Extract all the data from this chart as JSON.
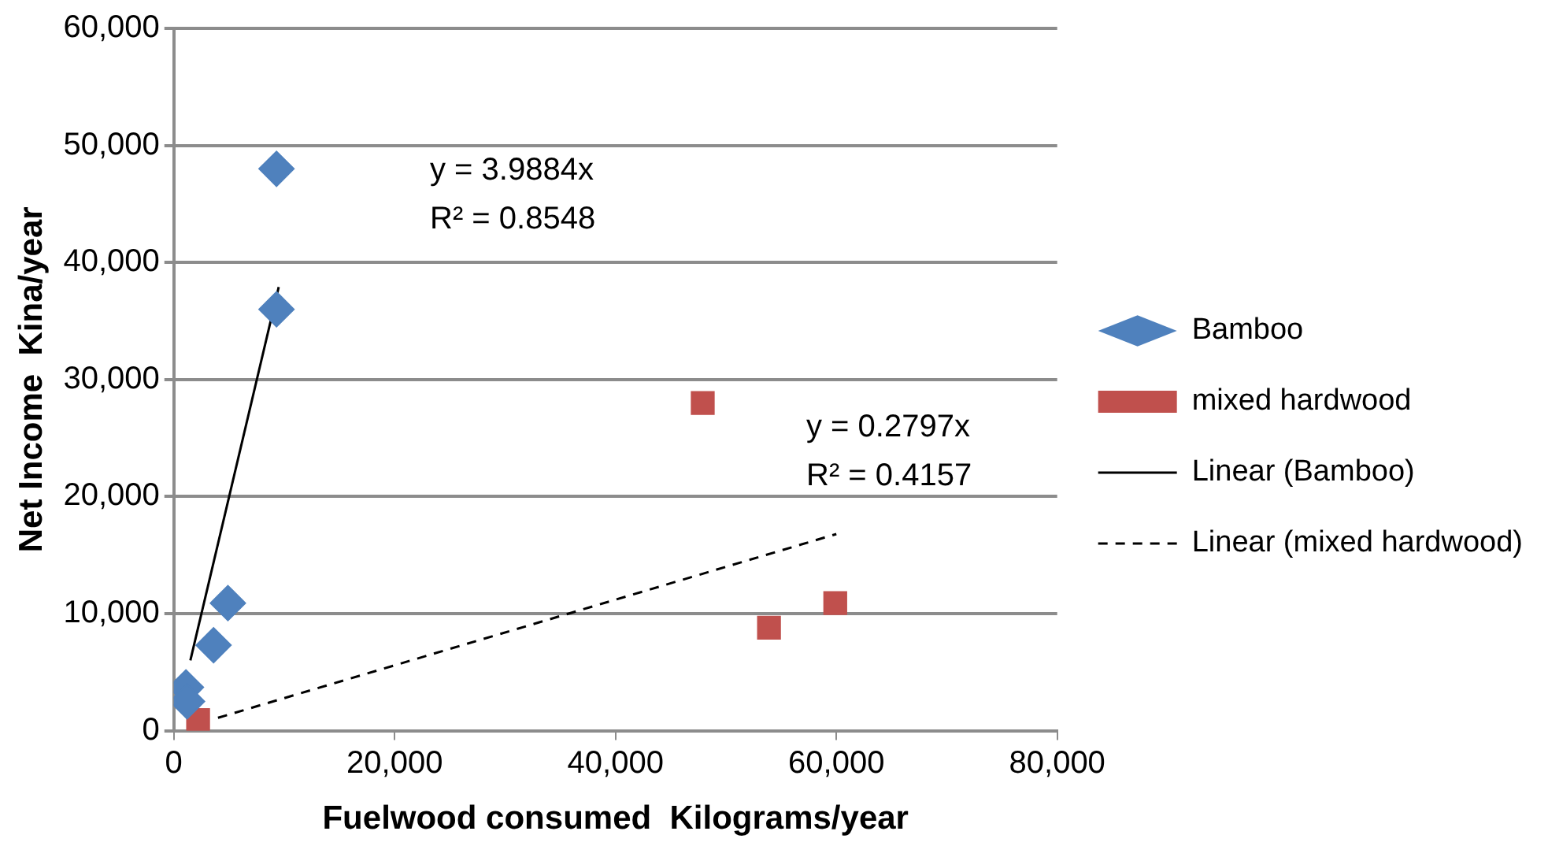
{
  "chart_data": {
    "type": "scatter",
    "xlabel": "Fuelwood consumed  Kilograms/year",
    "ylabel": "Net Income  Kina/year",
    "xlim": [
      0,
      80000
    ],
    "xticks": [
      0,
      {
        "value": 20000,
        "label": "20,000"
      },
      {
        "value": 40000,
        "label": "40,000"
      },
      {
        "value": 60000,
        "label": "60,000"
      },
      {
        "value": 80000,
        "label": "80,000"
      }
    ],
    "ylim": [
      0,
      60000
    ],
    "yticks": [
      0,
      {
        "value": 10000,
        "label": "10,000"
      },
      {
        "value": 20000,
        "label": "20,000"
      },
      {
        "value": 30000,
        "label": "30,000"
      },
      {
        "value": 40000,
        "label": "40,000"
      },
      {
        "value": 50000,
        "label": "50,000"
      },
      {
        "value": 60000,
        "label": "60,000"
      }
    ],
    "grid": "y",
    "legend": "right",
    "series": [
      {
        "name": "Bamboo",
        "color": "#4f81bd",
        "marker": "diamond",
        "x": [
          9300,
          9300,
          4900,
          3600,
          1100,
          1200
        ],
        "values": [
          48000,
          36000,
          10900,
          7300,
          3700,
          2500
        ]
      },
      {
        "name": "mixed hardwood",
        "color": "#c0504d",
        "marker": "square",
        "x": [
          2200,
          47900,
          53900,
          59900
        ],
        "values": [
          900,
          28000,
          8800,
          10900
        ]
      },
      {
        "name": "Linear (Bamboo)",
        "type": "line",
        "color": "#000000",
        "line_style": "solid",
        "marker": "none",
        "x": [
          1500,
          9500
        ],
        "values": [
          6000,
          37900
        ]
      },
      {
        "name": "Linear (mixed hardwood)",
        "type": "line",
        "color": "#000000",
        "line_style": "dashed",
        "marker": "none",
        "x": [
          4000,
          60000
        ],
        "values": [
          1100,
          16800
        ]
      }
    ],
    "annotations": [
      "y = 3.9884x",
      "R² = 0.8548",
      "y = 0.2797x",
      "R² = 0.4157"
    ]
  }
}
